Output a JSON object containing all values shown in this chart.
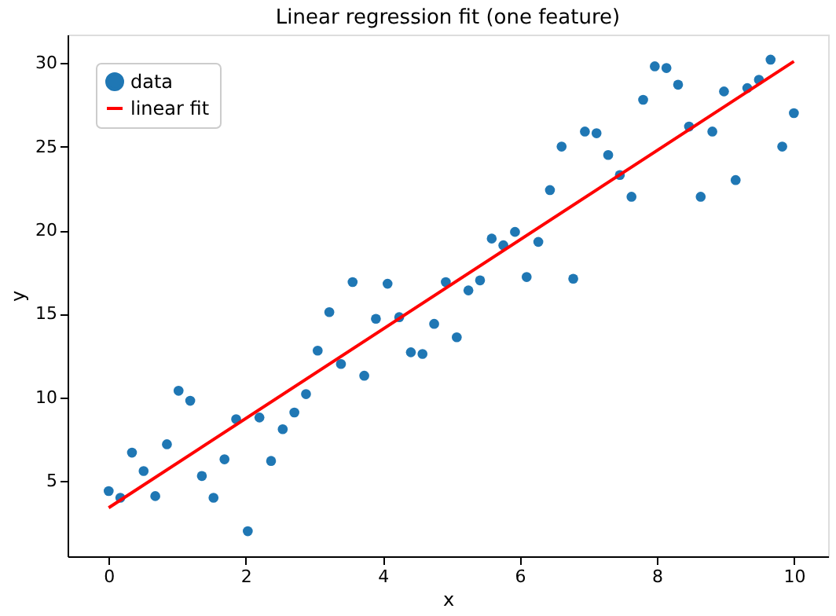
{
  "chart_data": {
    "type": "scatter",
    "title": "Linear regression fit (one feature)",
    "xlabel": "x",
    "ylabel": "y",
    "xlim": [
      -0.6,
      10.5
    ],
    "ylim": [
      0.5,
      31.7
    ],
    "xticks": [
      0,
      2,
      4,
      6,
      8,
      10
    ],
    "yticks": [
      5,
      10,
      15,
      20,
      25,
      30
    ],
    "grid": false,
    "legend": "top left",
    "series": [
      {
        "name": "data",
        "color": "#1f77b4",
        "marker": "circle",
        "x": [
          0,
          0.17,
          0.34,
          0.51,
          0.68,
          0.85,
          1.02,
          1.19,
          1.36,
          1.53,
          1.69,
          1.86,
          2.03,
          2.2,
          2.37,
          2.54,
          2.71,
          2.88,
          3.05,
          3.22,
          3.39,
          3.56,
          3.73,
          3.9,
          4.07,
          4.24,
          4.41,
          4.58,
          4.75,
          4.92,
          5.08,
          5.25,
          5.42,
          5.59,
          5.76,
          5.93,
          6.1,
          6.27,
          6.44,
          6.61,
          6.78,
          6.95,
          7.12,
          7.29,
          7.46,
          7.63,
          7.8,
          7.97,
          8.14,
          8.31,
          8.47,
          8.64,
          8.81,
          8.98,
          9.15,
          9.32,
          9.49,
          9.66,
          9.83,
          10
        ],
        "values": [
          4.4,
          4.0,
          6.7,
          5.6,
          4.1,
          7.2,
          10.4,
          9.8,
          5.3,
          4.0,
          6.3,
          8.7,
          2.0,
          8.8,
          6.2,
          8.1,
          9.1,
          10.2,
          12.8,
          15.1,
          12.0,
          16.9,
          11.3,
          14.7,
          16.8,
          14.8,
          12.7,
          12.6,
          14.4,
          16.9,
          13.6,
          16.4,
          17.0,
          19.5,
          19.1,
          19.9,
          17.2,
          19.3,
          22.4,
          25.0,
          17.1,
          25.9,
          25.8,
          24.5,
          23.3,
          22.0,
          27.8,
          29.8,
          29.7,
          28.7,
          26.2,
          22.0,
          25.9,
          28.3,
          23.0,
          28.5,
          29.0,
          30.2,
          25.0,
          27.0
        ]
      },
      {
        "name": "linear fit",
        "color": "#ff0000",
        "type": "line",
        "x": [
          0,
          10
        ],
        "values": [
          3.4,
          30.1
        ]
      }
    ]
  }
}
